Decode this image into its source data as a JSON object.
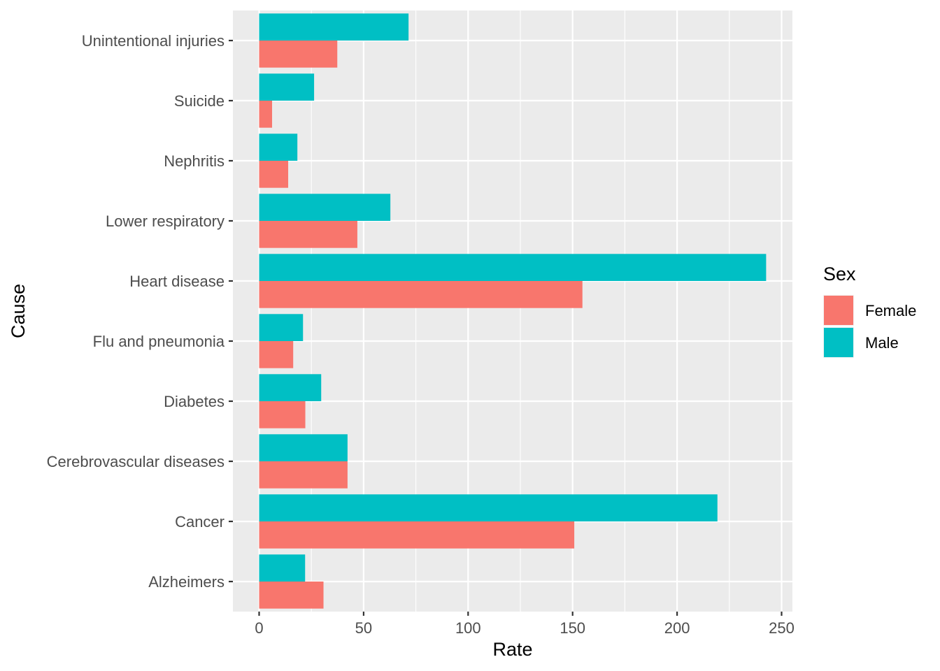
{
  "chart_data": {
    "type": "bar",
    "orientation": "horizontal",
    "categories": [
      "Alzheimers",
      "Cancer",
      "Cerebrovascular diseases",
      "Diabetes",
      "Flu and pneumonia",
      "Heart disease",
      "Lower respiratory",
      "Nephritis",
      "Suicide",
      "Unintentional injuries"
    ],
    "series": [
      {
        "name": "Female",
        "color": "#F8766D",
        "values": [
          30.8,
          150.8,
          42.3,
          22.1,
          16.3,
          154.7,
          47.0,
          13.9,
          6.2,
          37.4
        ]
      },
      {
        "name": "Male",
        "color": "#00BFC4",
        "values": [
          22.0,
          219.3,
          42.3,
          29.7,
          21.0,
          242.6,
          62.8,
          18.3,
          26.3,
          71.5
        ]
      }
    ],
    "xlabel": "Rate",
    "ylabel": "Cause",
    "xlim": [
      0,
      250
    ],
    "x_ticks": [
      0,
      50,
      100,
      150,
      200,
      250
    ],
    "grid": true,
    "legend": {
      "title": "Sex",
      "position": "right"
    },
    "panel_background": "#EBEBEB"
  }
}
